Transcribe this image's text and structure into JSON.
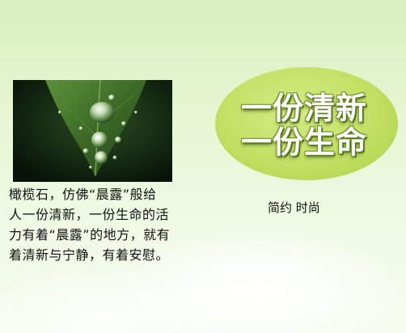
{
  "caption": {
    "lines": [
      "橄榄石，仿佛“晨露”般给",
      "人一份清新，一份生命的活",
      "力有着“晨露”的地方，就有",
      "着清新与宁静，有着安慰。"
    ]
  },
  "badge": {
    "line1": "一份清新",
    "line2": "一份生命",
    "color": "#c2e063"
  },
  "tagline": "简约 时尚",
  "photo": {
    "subject": "dew-drops-on-leaf"
  }
}
